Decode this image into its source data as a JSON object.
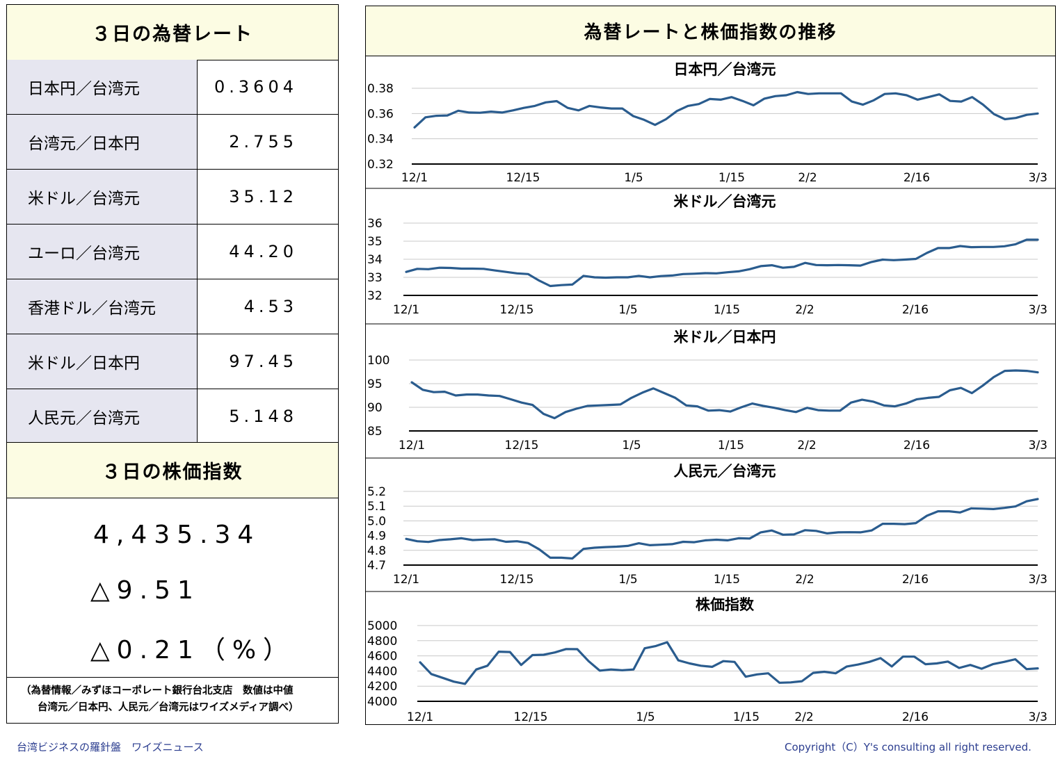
{
  "left": {
    "rate_title": "３日の為替レート",
    "rates": [
      {
        "label": "日本円／台湾元",
        "value": "0.3604"
      },
      {
        "label": "台湾元／日本円",
        "value": "2.755"
      },
      {
        "label": "米ドル／台湾元",
        "value": "35.12"
      },
      {
        "label": "ユーロ／台湾元",
        "value": "44.20"
      },
      {
        "label": "香港ドル／台湾元",
        "value": "4.53"
      },
      {
        "label": "米ドル／日本円",
        "value": "97.45"
      },
      {
        "label": "人民元／台湾元",
        "value": "5.148"
      }
    ],
    "stock_title": "３日の株価指数",
    "stock_value": "4,435.34",
    "stock_change": "△9.51",
    "stock_change_pct": "△0.21（%）",
    "note_line1": "（為替情報／みずほコーポレート銀行台北支店　数値は中値",
    "note_line2": "台湾元／日本円、人民元／台湾元はワイズメディア調べ）"
  },
  "right_title": "為替レートと株価指数の推移",
  "footer": {
    "left": "台湾ビジネスの羅針盤　ワイズニュース",
    "right": "Copyright（C）Y's consulting all right reserved."
  },
  "colors": {
    "line": "#2a5c8e",
    "header_bg": "#fcfce3",
    "label_bg": "#e6e6f0",
    "footer_text": "#2b3d8f"
  },
  "chart_data": [
    {
      "type": "line",
      "title": "日本円／台湾元",
      "ylim": [
        0.32,
        0.38
      ],
      "yticks": [
        "0.38",
        "0.36",
        "0.34",
        "0.32"
      ],
      "xticks": [
        "12/1",
        "12/15",
        "1/5",
        "1/15",
        "2/2",
        "2/16",
        "3/3"
      ],
      "values": [
        0.349,
        0.357,
        0.3582,
        0.3585,
        0.3622,
        0.3608,
        0.3606,
        0.3615,
        0.3608,
        0.3625,
        0.3645,
        0.366,
        0.3688,
        0.3698,
        0.3645,
        0.3625,
        0.366,
        0.3648,
        0.364,
        0.364,
        0.358,
        0.355,
        0.351,
        0.3555,
        0.362,
        0.366,
        0.3675,
        0.3715,
        0.371,
        0.373,
        0.37,
        0.3665,
        0.3718,
        0.3738,
        0.3745,
        0.377,
        0.3755,
        0.376,
        0.376,
        0.376,
        0.3695,
        0.367,
        0.3705,
        0.3755,
        0.376,
        0.3745,
        0.371,
        0.373,
        0.3752,
        0.37,
        0.3695,
        0.373,
        0.367,
        0.3595,
        0.3555,
        0.3565,
        0.359,
        0.36
      ]
    },
    {
      "type": "line",
      "title": "米ドル／台湾元",
      "ylim": [
        32,
        36
      ],
      "yticks": [
        "36",
        "35",
        "34",
        "33",
        "32"
      ],
      "xticks": [
        "12/1",
        "12/15",
        "1/5",
        "1/15",
        "2/2",
        "2/16",
        "3/3"
      ],
      "values": [
        33.3,
        33.47,
        33.45,
        33.53,
        33.52,
        33.48,
        33.48,
        33.47,
        33.38,
        33.3,
        33.22,
        33.18,
        32.82,
        32.52,
        32.57,
        32.6,
        33.08,
        33.0,
        32.98,
        33.0,
        33.0,
        33.08,
        33.0,
        33.07,
        33.1,
        33.18,
        33.2,
        33.23,
        33.22,
        33.28,
        33.33,
        33.45,
        33.62,
        33.67,
        33.53,
        33.58,
        33.8,
        33.68,
        33.67,
        33.68,
        33.67,
        33.65,
        33.85,
        33.98,
        33.95,
        33.98,
        34.02,
        34.35,
        34.62,
        34.62,
        34.73,
        34.67,
        34.68,
        34.68,
        34.72,
        34.83,
        35.08,
        35.08
      ]
    },
    {
      "type": "line",
      "title": "米ドル／日本円",
      "ylim": [
        85,
        100
      ],
      "yticks": [
        "100",
        "95",
        "90",
        "85"
      ],
      "xticks": [
        "12/1",
        "12/15",
        "1/5",
        "1/15",
        "2/2",
        "2/16",
        "3/3"
      ],
      "values": [
        95.3,
        93.7,
        93.2,
        93.3,
        92.5,
        92.7,
        92.7,
        92.5,
        92.4,
        91.7,
        91.0,
        90.5,
        88.6,
        87.7,
        89.0,
        89.7,
        90.3,
        90.4,
        90.5,
        90.6,
        92.0,
        93.1,
        94.0,
        93.0,
        92.0,
        90.4,
        90.2,
        89.3,
        89.4,
        89.1,
        90.0,
        90.8,
        90.3,
        89.9,
        89.4,
        89.0,
        89.9,
        89.4,
        89.3,
        89.3,
        91.0,
        91.6,
        91.2,
        90.4,
        90.2,
        90.8,
        91.7,
        92.0,
        92.2,
        93.6,
        94.1,
        93.0,
        94.6,
        96.4,
        97.7,
        97.8,
        97.7,
        97.4
      ]
    },
    {
      "type": "line",
      "title": "人民元／台湾元",
      "ylim": [
        4.7,
        5.2
      ],
      "yticks": [
        "5.2",
        "5.1",
        "5.0",
        "4.9",
        "4.8",
        "4.7"
      ],
      "xticks": [
        "12/1",
        "12/15",
        "1/5",
        "1/15",
        "2/2",
        "2/16",
        "3/3"
      ],
      "values": [
        4.878,
        4.862,
        4.857,
        4.87,
        4.875,
        4.882,
        4.87,
        4.873,
        4.875,
        4.858,
        4.862,
        4.85,
        4.807,
        4.75,
        4.75,
        4.745,
        4.81,
        4.818,
        4.822,
        4.825,
        4.83,
        4.848,
        4.835,
        4.838,
        4.842,
        4.858,
        4.855,
        4.868,
        4.872,
        4.868,
        4.882,
        4.88,
        4.922,
        4.935,
        4.906,
        4.908,
        4.937,
        4.932,
        4.915,
        4.922,
        4.923,
        4.922,
        4.935,
        4.98,
        4.98,
        4.978,
        4.985,
        5.035,
        5.065,
        5.065,
        5.057,
        5.085,
        5.083,
        5.08,
        5.088,
        5.098,
        5.133,
        5.148
      ]
    },
    {
      "type": "line",
      "title": "株価指数",
      "ylim": [
        4000,
        5000
      ],
      "yticks": [
        "5000",
        "4800",
        "4600",
        "4400",
        "4200",
        "4000"
      ],
      "xticks": [
        "12/1",
        "12/15",
        "1/5",
        "1/15",
        "2/2",
        "2/16",
        "3/3"
      ],
      "values": [
        4515,
        4360,
        4310,
        4260,
        4230,
        4420,
        4470,
        4655,
        4650,
        4480,
        4610,
        4615,
        4645,
        4690,
        4688,
        4530,
        4405,
        4420,
        4410,
        4420,
        4700,
        4730,
        4780,
        4540,
        4500,
        4470,
        4455,
        4530,
        4520,
        4325,
        4355,
        4370,
        4245,
        4250,
        4265,
        4375,
        4390,
        4370,
        4460,
        4485,
        4520,
        4570,
        4460,
        4590,
        4590,
        4490,
        4500,
        4525,
        4440,
        4480,
        4430,
        4490,
        4520,
        4555,
        4425,
        4435
      ]
    }
  ]
}
